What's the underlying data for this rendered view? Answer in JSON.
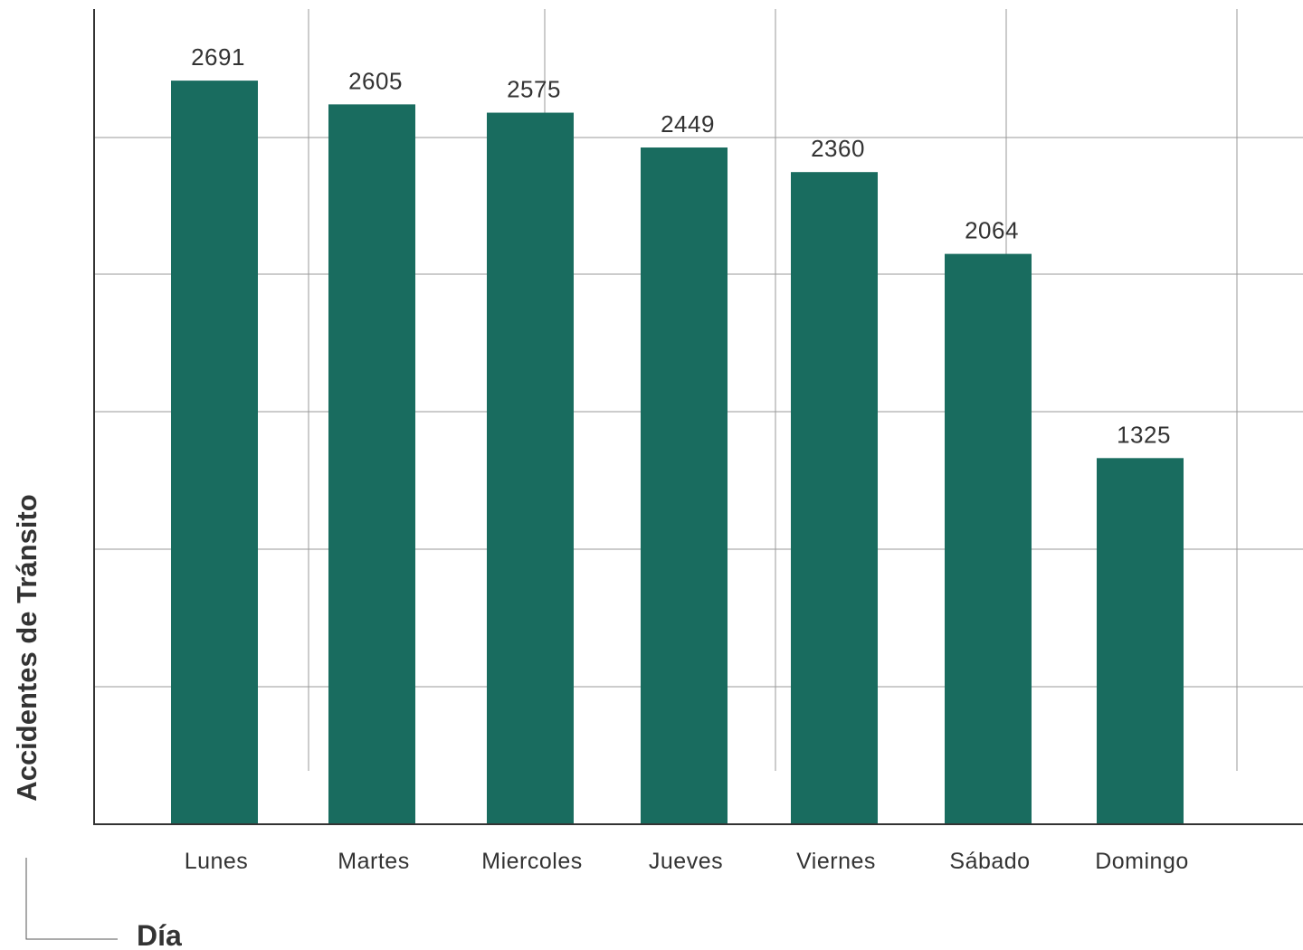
{
  "chart_data": {
    "type": "bar",
    "categories": [
      "Lunes",
      "Martes",
      "Miercoles",
      "Jueves",
      "Viernes",
      "Sábado",
      "Domingo"
    ],
    "values": [
      2691,
      2605,
      2575,
      2449,
      2360,
      2064,
      1325
    ],
    "xlabel": "Día",
    "ylabel": "Accidentes de Tránsito",
    "ylim": [
      0,
      2950
    ],
    "grid": true,
    "legend": "none",
    "colors": {
      "bar": "#196c5f",
      "axis": "#333333",
      "grid": "#9a9a9a",
      "text": "#333333"
    }
  }
}
